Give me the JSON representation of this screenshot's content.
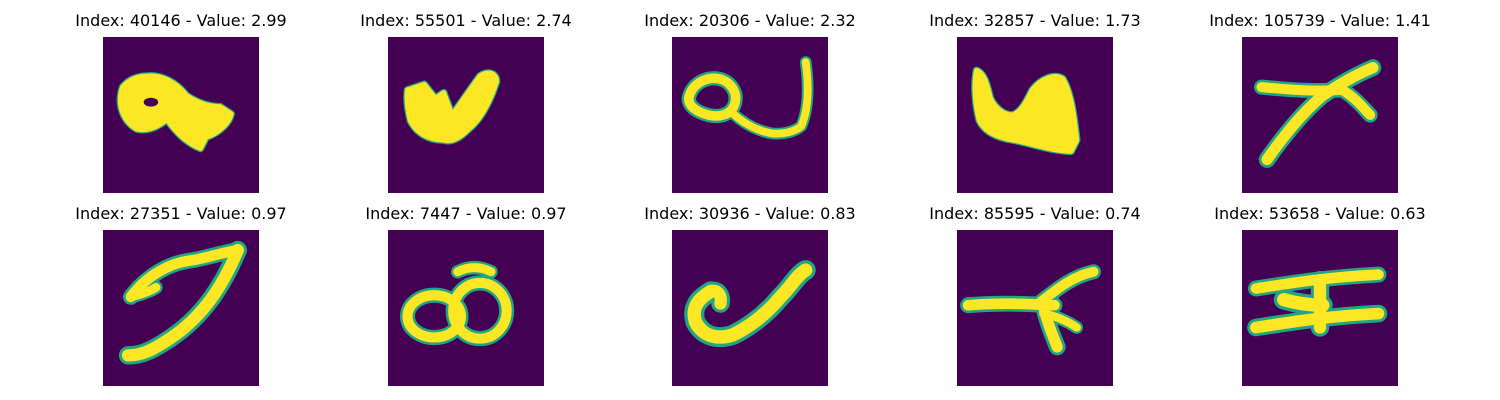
{
  "colors": {
    "background": "#440154",
    "mid": "#21a685",
    "stroke": "#fde725"
  },
  "chart_data": {
    "type": "image-grid",
    "rows": 2,
    "columns": 5,
    "colormap": "viridis",
    "axes": "off",
    "panels": [
      {
        "title": "Index: 40146 - Value: 2.99",
        "index": 40146,
        "value": 2.99,
        "glyph": "key-shape"
      },
      {
        "title": "Index: 55501 - Value: 2.74",
        "index": 55501,
        "value": 2.74,
        "glyph": "w-shape"
      },
      {
        "title": "Index: 20306 - Value: 2.32",
        "index": 20306,
        "value": 2.32,
        "glyph": "a-loop-shape"
      },
      {
        "title": "Index: 32857 - Value: 1.73",
        "index": 32857,
        "value": 1.73,
        "glyph": "u-shape"
      },
      {
        "title": "Index: 105739 - Value: 1.41",
        "index": 105739,
        "value": 1.41,
        "glyph": "x-shape"
      },
      {
        "title": "Index: 27351 - Value: 0.97",
        "index": 27351,
        "value": 0.97,
        "glyph": "seven-shape"
      },
      {
        "title": "Index: 7447 - Value: 0.97",
        "index": 7447,
        "value": 0.97,
        "glyph": "eight-shape"
      },
      {
        "title": "Index: 30936 - Value: 0.83",
        "index": 30936,
        "value": 0.83,
        "glyph": "v-shape"
      },
      {
        "title": "Index: 85595 - Value: 0.74",
        "index": 85595,
        "value": 0.74,
        "glyph": "t-shape"
      },
      {
        "title": "Index: 53658 - Value: 0.63",
        "index": 53658,
        "value": 0.63,
        "glyph": "h-shape"
      }
    ]
  }
}
